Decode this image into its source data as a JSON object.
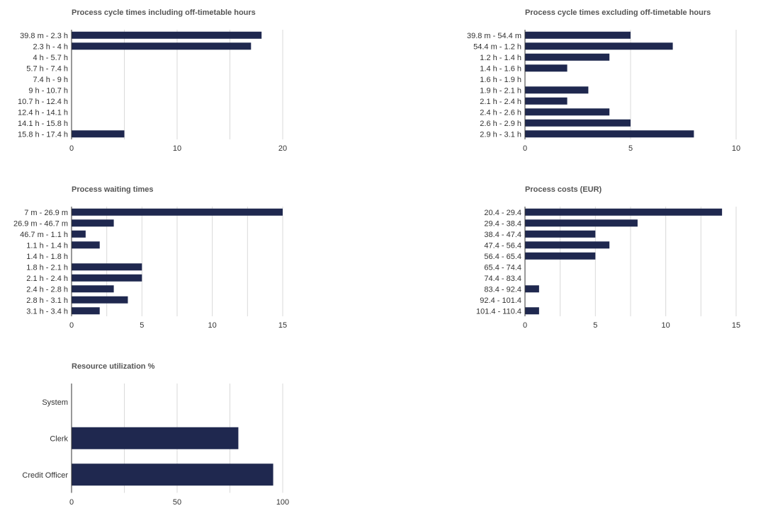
{
  "colors": {
    "bar": "#1f284f",
    "grid": "#d9d9d9",
    "axis": "#333333",
    "title": "#555555"
  },
  "chart_data": [
    {
      "type": "bar",
      "orientation": "horizontal",
      "title": "Process cycle times including off-timetable hours",
      "categories": [
        "39.8 m - 2.3 h",
        "2.3 h - 4 h",
        "4 h - 5.7 h",
        "5.7 h - 7.4 h",
        "7.4 h - 9 h",
        "9 h - 10.7 h",
        "10.7 h - 12.4 h",
        "12.4 h - 14.1 h",
        "14.1 h - 15.8 h",
        "15.8 h - 17.4 h"
      ],
      "values": [
        18,
        17,
        0,
        0,
        0,
        0,
        0,
        0,
        0,
        5
      ],
      "xlim": [
        0,
        20
      ],
      "ticks": [
        0,
        10,
        20
      ],
      "grid_step": 5,
      "grid": true
    },
    {
      "type": "bar",
      "orientation": "horizontal",
      "title": "Process cycle times excluding off-timetable hours",
      "categories": [
        "39.8 m - 54.4 m",
        "54.4 m - 1.2 h",
        "1.2 h - 1.4 h",
        "1.4 h - 1.6 h",
        "1.6 h - 1.9 h",
        "1.9 h - 2.1 h",
        "2.1 h - 2.4 h",
        "2.4 h - 2.6 h",
        "2.6 h - 2.9 h",
        "2.9 h - 3.1 h"
      ],
      "values": [
        5,
        7,
        4,
        2,
        0,
        3,
        2,
        4,
        5,
        8
      ],
      "xlim": [
        0,
        10
      ],
      "ticks": [
        0,
        5,
        10
      ],
      "grid_step": 5,
      "grid": true
    },
    {
      "type": "bar",
      "orientation": "horizontal",
      "title": "Process waiting times",
      "categories": [
        "7 m - 26.9 m",
        "26.9 m - 46.7 m",
        "46.7 m - 1.1 h",
        "1.1 h - 1.4 h",
        "1.4 h - 1.8 h",
        "1.8 h - 2.1 h",
        "2.1 h - 2.4 h",
        "2.4 h - 2.8 h",
        "2.8 h - 3.1 h",
        "3.1 h - 3.4 h"
      ],
      "values": [
        15,
        3,
        1,
        2,
        0,
        5,
        5,
        3,
        4,
        2
      ],
      "xlim": [
        0,
        15
      ],
      "ticks": [
        0,
        5,
        10,
        15
      ],
      "grid_step": 2.5,
      "grid": true
    },
    {
      "type": "bar",
      "orientation": "horizontal",
      "title": "Process costs (EUR)",
      "categories": [
        "20.4 - 29.4",
        "29.4 - 38.4",
        "38.4 - 47.4",
        "47.4 - 56.4",
        "56.4 - 65.4",
        "65.4 - 74.4",
        "74.4 - 83.4",
        "83.4 - 92.4",
        "92.4 - 101.4",
        "101.4 - 110.4"
      ],
      "values": [
        14,
        8,
        5,
        6,
        5,
        0,
        0,
        1,
        0,
        1
      ],
      "xlim": [
        0,
        15
      ],
      "ticks": [
        0,
        5,
        10,
        15
      ],
      "grid_step": 2.5,
      "grid": true
    },
    {
      "type": "bar",
      "orientation": "horizontal",
      "title": "Resource utilization %",
      "categories": [
        "System",
        "Clerk",
        "Credit Officer"
      ],
      "values": [
        0,
        79,
        95.5
      ],
      "xlim": [
        0,
        100
      ],
      "ticks": [
        0,
        50,
        100
      ],
      "grid_step": 25,
      "grid": true
    }
  ]
}
